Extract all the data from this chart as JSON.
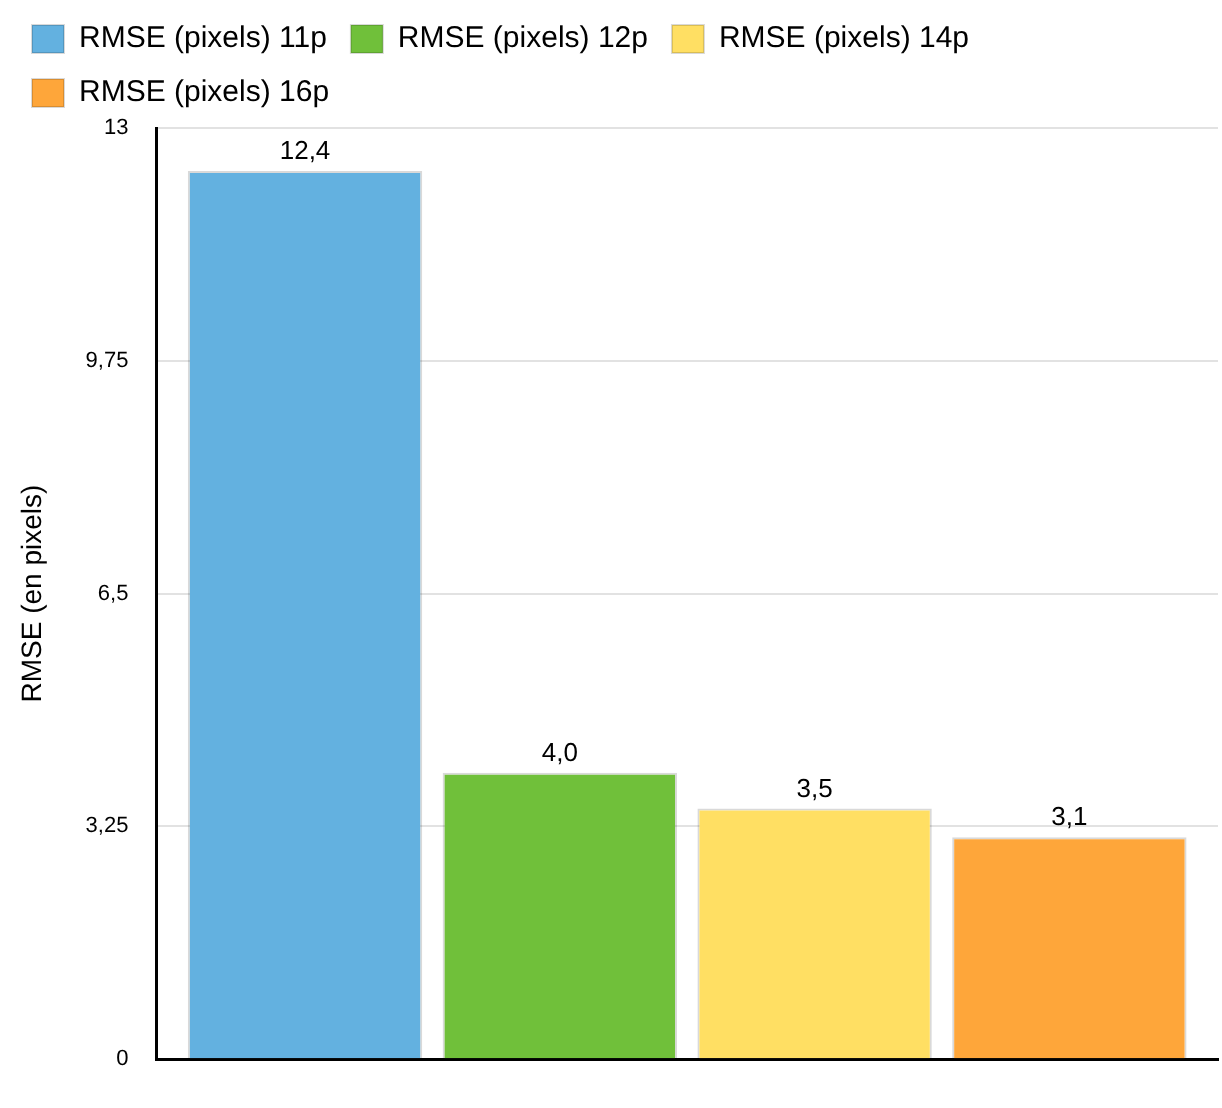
{
  "chart_data": {
    "type": "bar",
    "ylabel": "RMSE (en pixels)",
    "categories": [
      null
    ],
    "series": [
      {
        "name": "RMSE (pixels) 11p",
        "color": "#63b1e0",
        "values": [
          12.4
        ],
        "value_labels": [
          "12,4"
        ]
      },
      {
        "name": "RMSE (pixels) 12p",
        "color": "#70c03a",
        "values": [
          4.0
        ],
        "value_labels": [
          "4,0"
        ]
      },
      {
        "name": "RMSE (pixels) 14p",
        "color": "#ffdf63",
        "values": [
          3.5
        ],
        "value_labels": [
          "3,5"
        ]
      },
      {
        "name": "RMSE (pixels) 16p",
        "color": "#fea63a",
        "values": [
          3.1
        ],
        "value_labels": [
          "3,1"
        ]
      }
    ],
    "ylim": [
      0,
      13
    ],
    "yticks": [
      0,
      {
        "value": 3.25,
        "label": "3,25"
      },
      {
        "value": 6.5,
        "label": "6,5"
      },
      {
        "value": 9.75,
        "label": "9,75"
      },
      13
    ],
    "grid": "y",
    "legend": "top"
  }
}
